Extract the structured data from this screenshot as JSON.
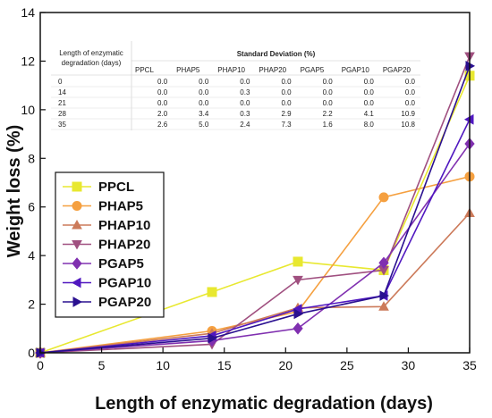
{
  "chart_data": {
    "type": "line",
    "xlabel": "Length of enzymatic degradation (days)",
    "ylabel": "Weight loss (%)",
    "xlim": [
      0,
      35
    ],
    "ylim": [
      0,
      14
    ],
    "xticks": [
      "0",
      "5",
      "10",
      "15",
      "20",
      "25",
      "30",
      "35"
    ],
    "yticks": [
      "0",
      "2",
      "4",
      "6",
      "8",
      "10",
      "12",
      "14"
    ],
    "x": [
      0,
      14,
      21,
      28,
      35
    ],
    "grid": false,
    "legend_position": "left-middle",
    "series": [
      {
        "name": "PPCL",
        "marker": "square",
        "color": "#e8e830",
        "values": [
          0,
          2.5,
          3.75,
          3.4,
          11.4
        ]
      },
      {
        "name": "PHAP5",
        "marker": "circle",
        "color": "#f5a040",
        "values": [
          0,
          0.9,
          1.7,
          6.4,
          7.25
        ]
      },
      {
        "name": "PHAP10",
        "marker": "triangle-up",
        "color": "#cc7a5a",
        "values": [
          0,
          0.8,
          1.85,
          1.9,
          5.75
        ]
      },
      {
        "name": "PHAP20",
        "marker": "triangle-down",
        "color": "#a05080",
        "values": [
          0,
          0.35,
          3.0,
          3.4,
          12.2
        ]
      },
      {
        "name": "PGAP5",
        "marker": "diamond",
        "color": "#8030b0",
        "values": [
          0,
          0.5,
          1.0,
          3.7,
          8.6
        ]
      },
      {
        "name": "PGAP10",
        "marker": "triangle-left",
        "color": "#5018c0",
        "values": [
          0,
          0.7,
          1.8,
          2.35,
          9.6
        ]
      },
      {
        "name": "PGAP20",
        "marker": "triangle-right",
        "color": "#2a1090",
        "values": [
          0,
          0.6,
          1.6,
          2.35,
          11.8
        ]
      }
    ],
    "table": {
      "corner_header_line1": "Length of enzymatic",
      "corner_header_line2": "degradation (days)",
      "group_header": "Standard Deviation (%)",
      "columns": [
        "PPCL",
        "PHAP5",
        "PHAP10",
        "PHAP20",
        "PGAP5",
        "PGAP10",
        "PGAP20"
      ],
      "rows": [
        {
          "day": "0",
          "values": [
            "0.0",
            "0.0",
            "0.0",
            "0.0",
            "0.0",
            "0.0",
            "0.0"
          ]
        },
        {
          "day": "14",
          "values": [
            "0.0",
            "0.0",
            "0.3",
            "0.0",
            "0.0",
            "0.0",
            "0.0"
          ]
        },
        {
          "day": "21",
          "values": [
            "0.0",
            "0.0",
            "0.0",
            "0.0",
            "0.0",
            "0.0",
            "0.0"
          ]
        },
        {
          "day": "28",
          "values": [
            "2.0",
            "3.4",
            "0.3",
            "2.9",
            "2.2",
            "4.1",
            "10.9"
          ]
        },
        {
          "day": "35",
          "values": [
            "2.6",
            "5.0",
            "2.4",
            "7.3",
            "1.6",
            "8.0",
            "10.8"
          ]
        }
      ]
    }
  }
}
